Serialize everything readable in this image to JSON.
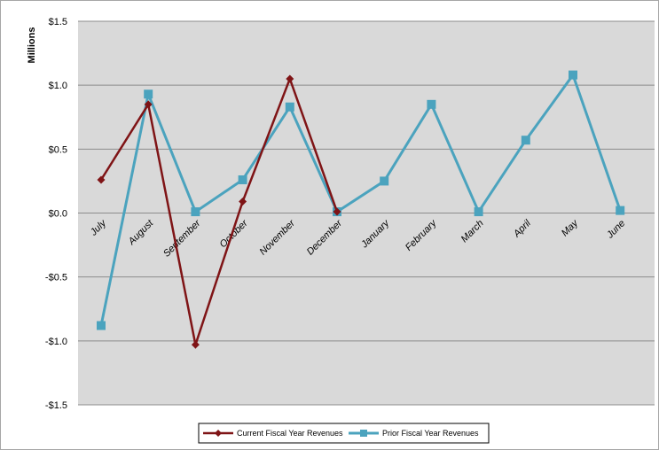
{
  "chart_data": {
    "type": "line",
    "ylabel": "Millions",
    "ylim": [
      -1.5,
      1.5
    ],
    "y_ticks": [
      1.5,
      1.0,
      0.5,
      0.0,
      -0.5,
      -1.0,
      -1.5
    ],
    "y_tick_labels": [
      "$1.5",
      "$1.0",
      "$0.5",
      "$0.0",
      "-$0.5",
      "-$1.0",
      "-$1.5"
    ],
    "categories": [
      "July",
      "August",
      "September",
      "October",
      "November",
      "December",
      "January",
      "February",
      "March",
      "April",
      "May",
      "June"
    ],
    "grid": true,
    "legend_position": "bottom",
    "plot_background": "#d9d9d9",
    "series": [
      {
        "name": "Current Fiscal Year Revenues",
        "color": "#7f1416",
        "marker": "diamond",
        "values": [
          0.26,
          0.85,
          -1.03,
          0.09,
          1.05,
          0.01,
          null,
          null,
          null,
          null,
          null,
          null
        ]
      },
      {
        "name": "Prior Fiscal Year Revenues",
        "color": "#4ba3be",
        "marker": "square",
        "values": [
          -0.88,
          0.93,
          0.01,
          0.26,
          0.83,
          0.01,
          0.25,
          0.85,
          0.01,
          0.57,
          1.08,
          0.02
        ]
      }
    ]
  }
}
